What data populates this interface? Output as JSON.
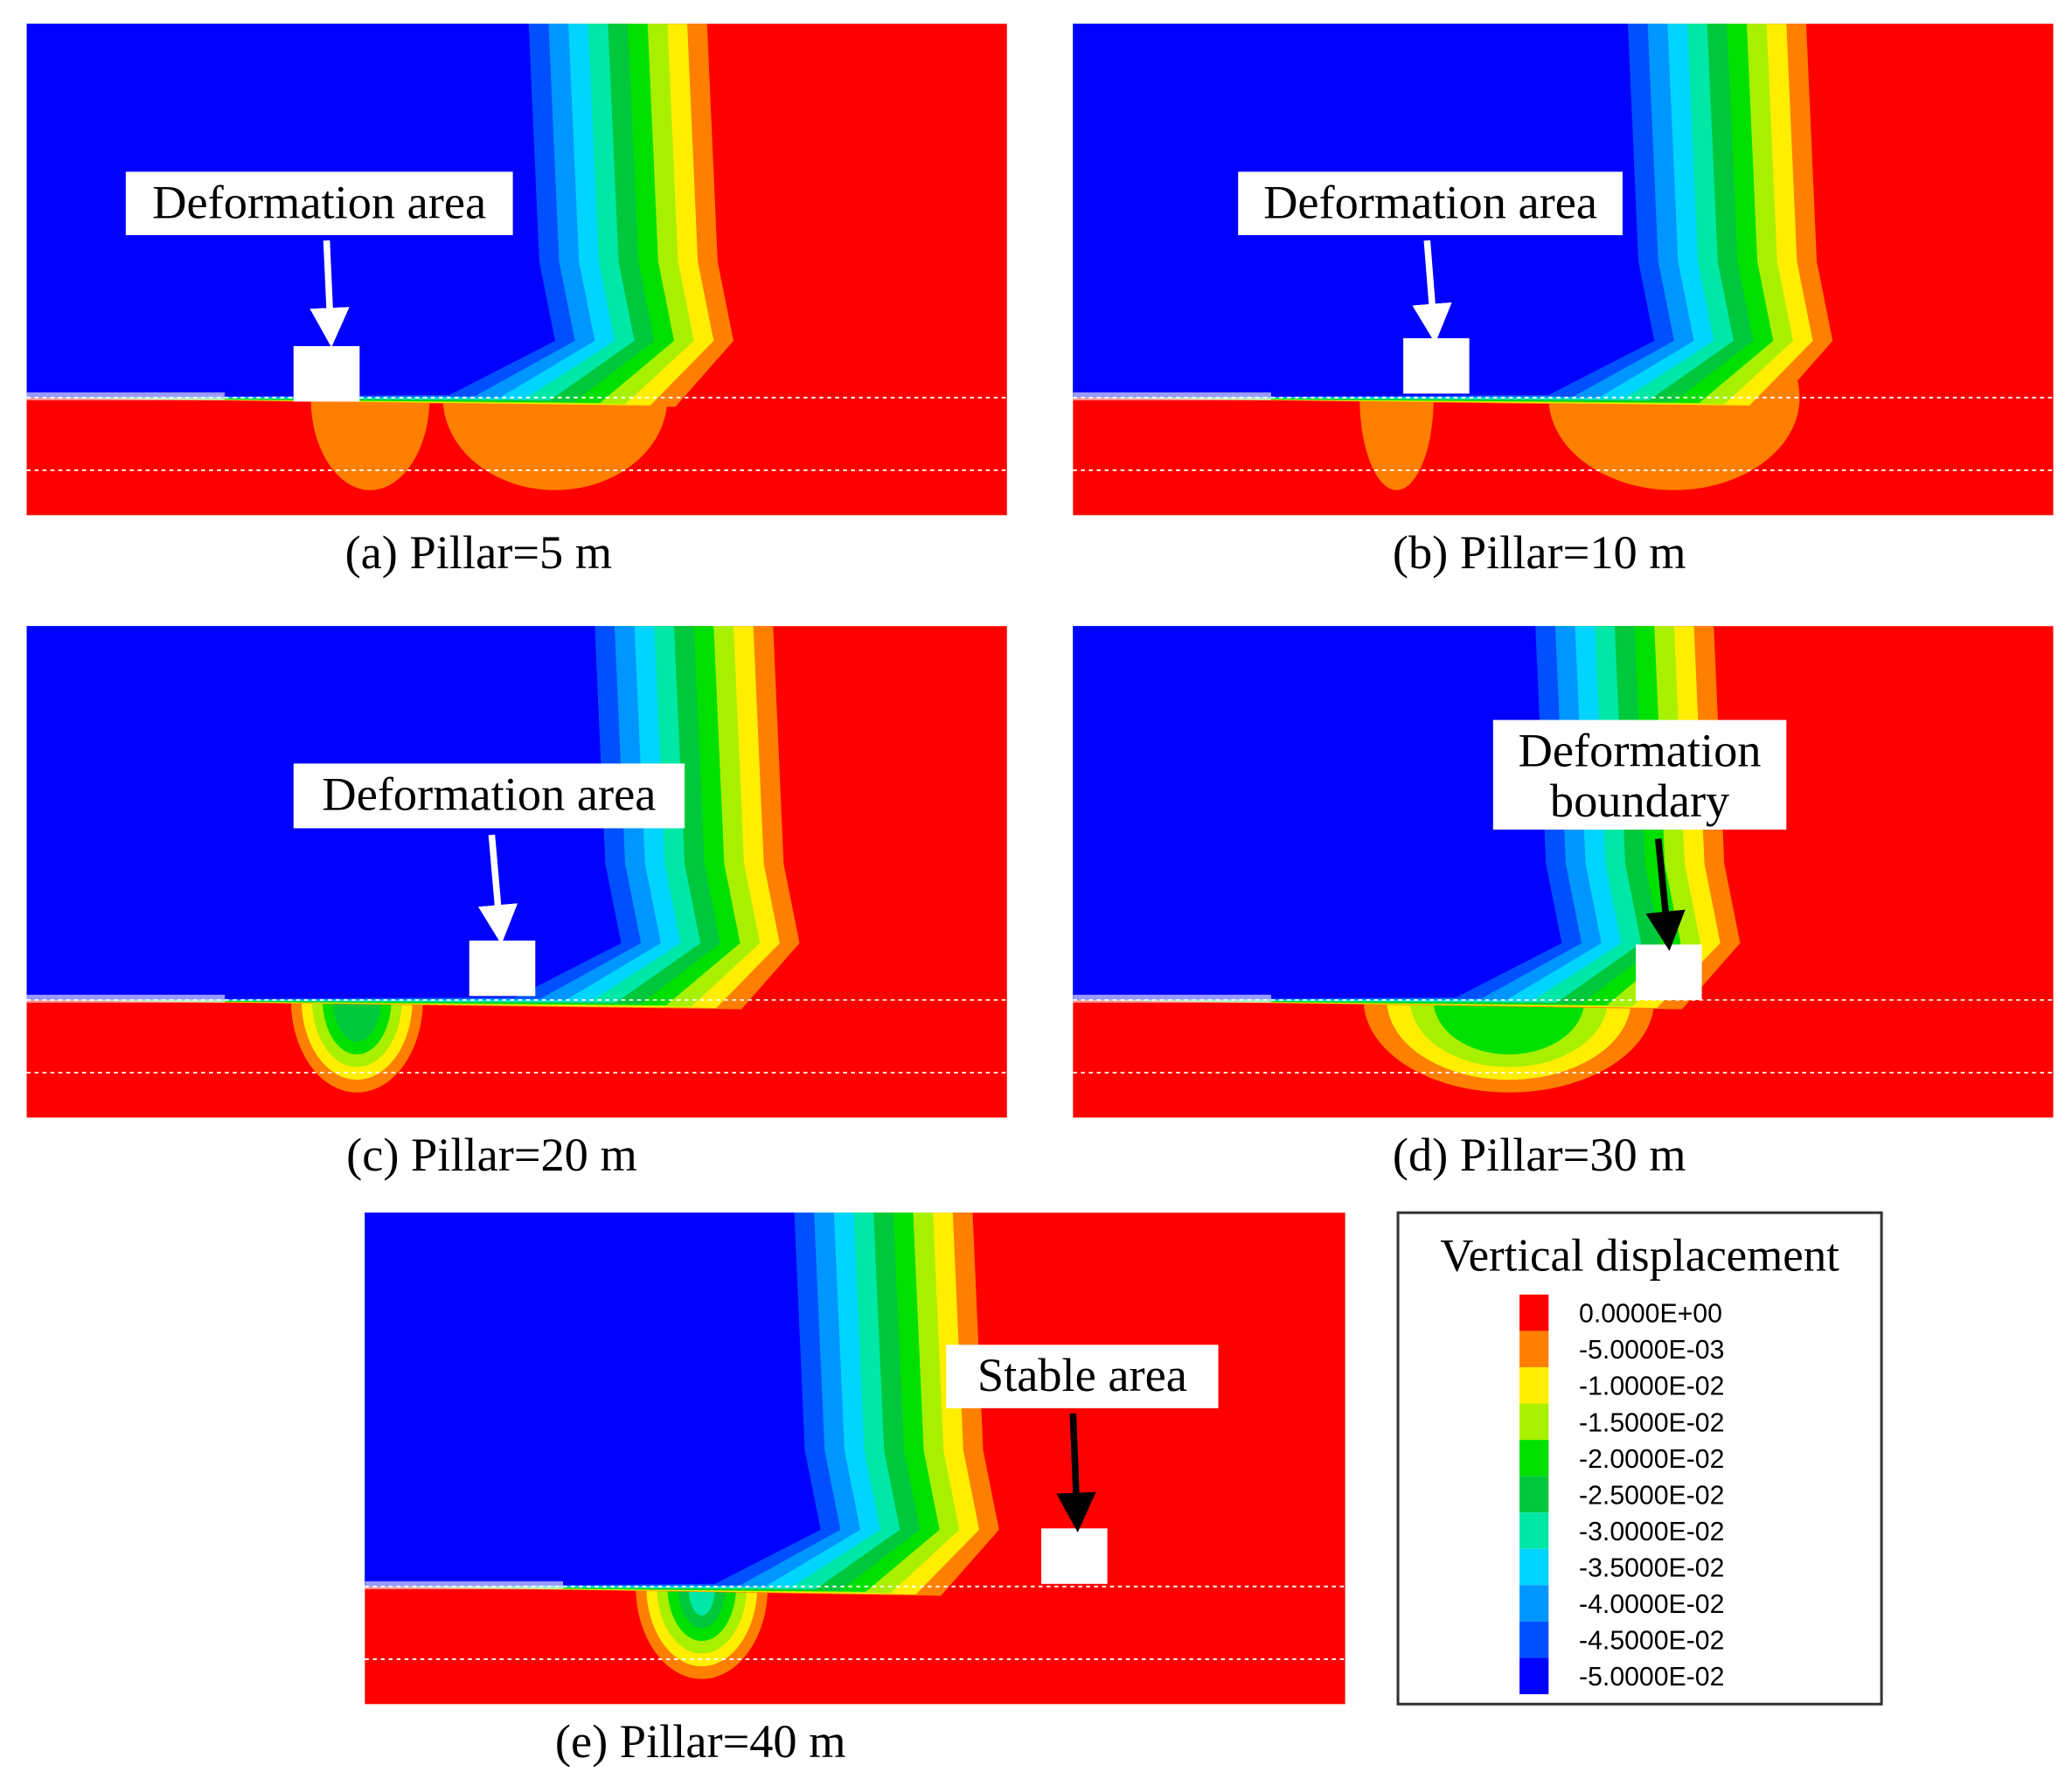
{
  "panels": [
    {
      "caption": "(a) Pillar=5 m",
      "annotation": [
        "Deformation area"
      ]
    },
    {
      "caption": "(b) Pillar=10 m",
      "annotation": [
        "Deformation area"
      ]
    },
    {
      "caption": "(c) Pillar=20 m",
      "annotation": [
        "Deformation area"
      ]
    },
    {
      "caption": "(d) Pillar=30 m",
      "annotation": [
        "Deformation",
        "boundary"
      ]
    },
    {
      "caption": "(e) Pillar=40 m",
      "annotation": [
        "Stable area"
      ]
    }
  ],
  "legend": {
    "title": "Vertical displacement",
    "entries": [
      {
        "label": "0.0000E+00",
        "color": "#ff0000"
      },
      {
        "label": "-5.0000E-03",
        "color": "#ff7f00"
      },
      {
        "label": "-1.0000E-02",
        "color": "#ffee00"
      },
      {
        "label": "-1.5000E-02",
        "color": "#a8f000"
      },
      {
        "label": "-2.0000E-02",
        "color": "#00e000"
      },
      {
        "label": "-2.5000E-02",
        "color": "#00c83c"
      },
      {
        "label": "-3.0000E-02",
        "color": "#00e8a8"
      },
      {
        "label": "-3.5000E-02",
        "color": "#00d4ff"
      },
      {
        "label": "-4.0000E-02",
        "color": "#0096ff"
      },
      {
        "label": "-4.5000E-02",
        "color": "#0050ff"
      },
      {
        "label": "-5.0000E-02",
        "color": "#0000ff"
      }
    ]
  }
}
